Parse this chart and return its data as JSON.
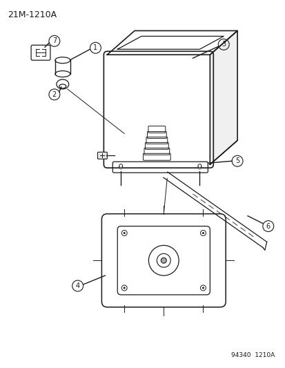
{
  "title": "21M-1210A",
  "footer": "94340  1210A",
  "background_color": "#ffffff",
  "line_color": "#1a1a1a",
  "part_numbers": [
    "1",
    "2",
    "3",
    "4",
    "5",
    "6",
    "7"
  ],
  "figsize": [
    4.14,
    5.33
  ],
  "dpi": 100
}
